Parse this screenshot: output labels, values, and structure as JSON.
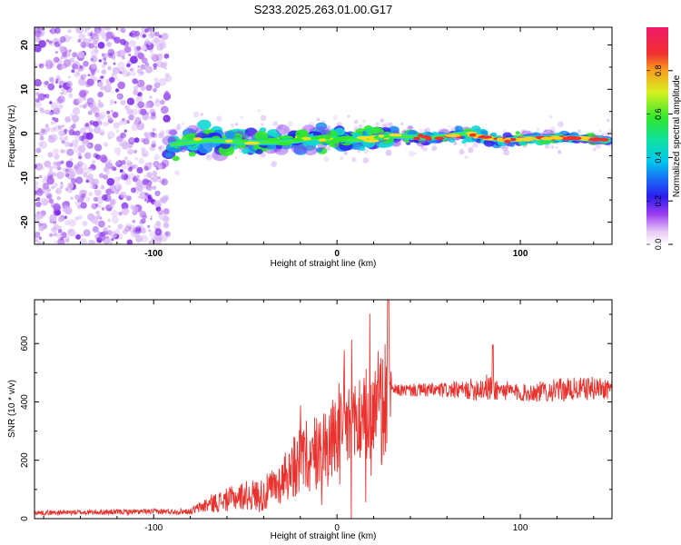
{
  "chart_data": [
    {
      "type": "heatmap",
      "title": "S233.2025.263.01.00.G17",
      "xlabel": "Height of straight line (km)",
      "ylabel": "Frequency (Hz)",
      "xlim": [
        -165,
        150
      ],
      "ylim": [
        -25,
        24
      ],
      "x_ticks": [
        -100,
        0,
        100
      ],
      "x_tick_labels": [
        "-100",
        "0",
        "100"
      ],
      "y_ticks": [
        -20,
        -10,
        0,
        10,
        20
      ],
      "y_tick_labels": [
        "-20",
        "-10",
        "0",
        "10",
        "20"
      ],
      "ridge": {
        "x": [
          -90,
          -70,
          -50,
          -30,
          -10,
          10,
          30,
          50,
          70,
          90,
          110,
          130,
          148
        ],
        "y": [
          -2.5,
          -1.5,
          -2.0,
          -2.0,
          -1.0,
          -1.5,
          -0.5,
          -1.0,
          0.0,
          -1.5,
          -1.0,
          -1.0,
          -1.5
        ]
      },
      "colorbar": {
        "label": "Normalized spectral amplitude",
        "range": [
          0,
          1
        ],
        "ticks": [
          0.0,
          0.2,
          0.4,
          0.6,
          0.8
        ],
        "tick_labels": [
          "0.0",
          "0.2",
          "0.4",
          "0.6",
          "0.8"
        ]
      }
    },
    {
      "type": "line",
      "xlabel": "Height of straight line (km)",
      "ylabel": "SNR (10 * v/v)",
      "xlim": [
        -165,
        150
      ],
      "ylim": [
        0,
        750
      ],
      "x_ticks": [
        -100,
        0,
        100
      ],
      "x_tick_labels": [
        "-100",
        "0",
        "100"
      ],
      "y_ticks": [
        0,
        200,
        400,
        600
      ],
      "y_tick_labels": [
        "0",
        "200",
        "400",
        "600"
      ],
      "series": [
        {
          "name": "SNR",
          "color": "#e8322e",
          "envelope_x": [
            -165,
            -80,
            -70,
            -50,
            -40,
            -30,
            -20,
            -10,
            0,
            10,
            20,
            28,
            30,
            50,
            70,
            80,
            90,
            100,
            120,
            150
          ],
          "envelope_mean": [
            20,
            25,
            50,
            80,
            80,
            130,
            200,
            230,
            280,
            330,
            380,
            420,
            440,
            440,
            440,
            450,
            440,
            430,
            440,
            450
          ],
          "envelope_spread": [
            8,
            10,
            30,
            50,
            60,
            80,
            120,
            140,
            150,
            170,
            180,
            200,
            20,
            25,
            30,
            50,
            35,
            30,
            40,
            40
          ]
        }
      ]
    }
  ],
  "colors": {
    "accent": "#e8322e",
    "grid_bg": "#ffffff"
  }
}
